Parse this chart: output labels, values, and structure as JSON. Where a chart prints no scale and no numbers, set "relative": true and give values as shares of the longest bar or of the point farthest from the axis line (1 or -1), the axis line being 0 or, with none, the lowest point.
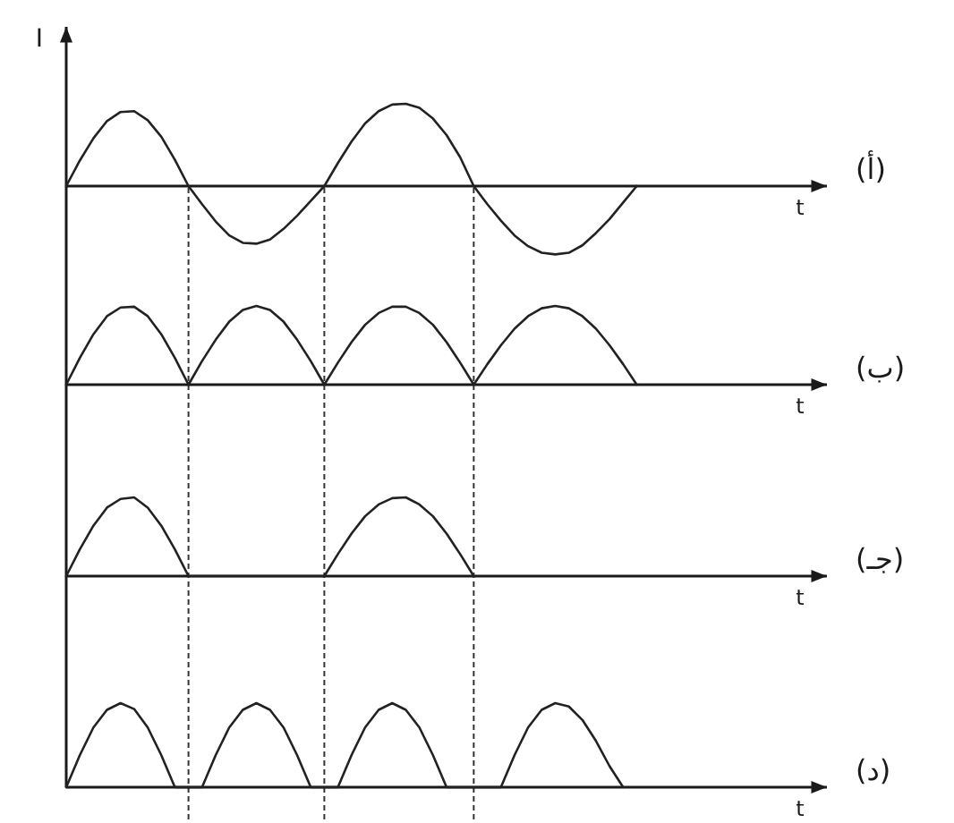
{
  "chart_data": [
    {
      "type": "line",
      "annotations": [
        "(أ)"
      ],
      "xlabel": "t",
      "ylabel": "I",
      "relative": true,
      "color": "#222222",
      "grid": "x",
      "categories": [
        null,
        null,
        null,
        null,
        null,
        null,
        null,
        null,
        null,
        null,
        null,
        null,
        null,
        null,
        null,
        null,
        null,
        null,
        null,
        null,
        null,
        null,
        null,
        null,
        null,
        null,
        null,
        null,
        null,
        null,
        null,
        null,
        null,
        null,
        null,
        null,
        null,
        null,
        null,
        null,
        null,
        null,
        null,
        null,
        null,
        null,
        null,
        null,
        null,
        null,
        null,
        null,
        null,
        null,
        null,
        null,
        null
      ],
      "values": [
        0,
        0.31,
        0.58,
        0.79,
        0.9,
        0.91,
        0.8,
        0.6,
        0.32,
        0,
        -0.22,
        -0.43,
        -0.6,
        -0.69,
        -0.7,
        -0.65,
        -0.52,
        -0.36,
        -0.18,
        0,
        0.28,
        0.54,
        0.76,
        0.91,
        0.99,
        1.0,
        0.95,
        0.82,
        0.62,
        0.35,
        0,
        -0.22,
        -0.42,
        -0.6,
        -0.73,
        -0.81,
        -0.83,
        -0.81,
        -0.72,
        -0.57,
        -0.4,
        -0.2,
        0,
        null,
        null,
        null,
        null,
        null,
        null,
        null,
        null,
        null,
        null,
        null,
        null,
        null,
        null
      ]
    },
    {
      "type": "line",
      "annotations": [
        "(ب)"
      ],
      "xlabel": "t",
      "relative": true,
      "color": "#222222",
      "categories": [
        null,
        null,
        null,
        null,
        null,
        null,
        null,
        null,
        null,
        null,
        null,
        null,
        null,
        null,
        null,
        null,
        null,
        null,
        null,
        null,
        null,
        null,
        null,
        null,
        null,
        null,
        null,
        null,
        null,
        null,
        null,
        null,
        null,
        null,
        null,
        null,
        null,
        null,
        null,
        null,
        null,
        null,
        null,
        null,
        null,
        null,
        null,
        null,
        null,
        null,
        null,
        null,
        null,
        null,
        null,
        null,
        null
      ],
      "values": [
        0,
        0.34,
        0.64,
        0.87,
        0.98,
        0.99,
        0.87,
        0.64,
        0.34,
        0,
        0.3,
        0.57,
        0.8,
        0.95,
        1.0,
        0.95,
        0.8,
        0.57,
        0.3,
        0,
        0.28,
        0.54,
        0.76,
        0.91,
        0.99,
        0.99,
        0.91,
        0.76,
        0.54,
        0.28,
        0,
        0.26,
        0.5,
        0.71,
        0.87,
        0.97,
        1.0,
        0.97,
        0.87,
        0.71,
        0.5,
        0.26,
        0,
        null,
        null,
        null,
        null,
        null,
        null,
        null,
        null,
        null,
        null,
        null,
        null,
        null,
        null
      ]
    },
    {
      "type": "line",
      "annotations": [
        "(جـ)"
      ],
      "xlabel": "t",
      "relative": true,
      "color": "#222222",
      "categories": [
        null,
        null,
        null,
        null,
        null,
        null,
        null,
        null,
        null,
        null,
        null,
        null,
        null,
        null,
        null,
        null,
        null,
        null,
        null,
        null,
        null,
        null,
        null,
        null,
        null,
        null,
        null,
        null,
        null,
        null,
        null,
        null,
        null,
        null,
        null,
        null,
        null,
        null,
        null,
        null,
        null,
        null,
        null,
        null,
        null,
        null,
        null,
        null,
        null,
        null,
        null,
        null,
        null,
        null,
        null,
        null,
        null
      ],
      "values": [
        0,
        0.34,
        0.64,
        0.87,
        0.98,
        1.0,
        0.87,
        0.64,
        0.34,
        0,
        0,
        0,
        0,
        0,
        0,
        0,
        0,
        0,
        0,
        0,
        0.28,
        0.54,
        0.76,
        0.91,
        0.99,
        1.0,
        0.91,
        0.76,
        0.54,
        0.28,
        0,
        null,
        null,
        null,
        null,
        null,
        null,
        null,
        null,
        null,
        null,
        null,
        null,
        null,
        null,
        null,
        null,
        null,
        null,
        null,
        null,
        null,
        null,
        null,
        null,
        null,
        null
      ]
    },
    {
      "type": "line",
      "annotations": [
        "(د)"
      ],
      "xlabel": "t",
      "relative": true,
      "color": "#222222",
      "categories": [
        null,
        null,
        null,
        null,
        null,
        null,
        null,
        null,
        null,
        null,
        null,
        null,
        null,
        null,
        null,
        null,
        null,
        null,
        null,
        null,
        null,
        null,
        null,
        null,
        null,
        null,
        null,
        null,
        null,
        null,
        null,
        null,
        null,
        null,
        null,
        null,
        null,
        null,
        null,
        null,
        null,
        null,
        null,
        null,
        null,
        null,
        null,
        null,
        null,
        null,
        null,
        null,
        null,
        null,
        null,
        null,
        null
      ],
      "values": [
        0,
        0.38,
        0.71,
        0.92,
        1.0,
        0.93,
        0.71,
        0.38,
        0,
        0,
        0,
        0.38,
        0.71,
        0.92,
        1.0,
        0.92,
        0.71,
        0.38,
        0,
        0,
        0,
        0.38,
        0.71,
        0.92,
        1.0,
        0.92,
        0.71,
        0.38,
        0,
        0,
        0,
        0,
        0,
        0.38,
        0.71,
        0.92,
        1.0,
        0.96,
        0.8,
        0.55,
        0.25,
        0,
        null,
        null,
        null,
        null,
        null,
        null,
        null,
        null,
        null,
        null,
        null,
        null,
        null,
        null,
        null
      ]
    }
  ]
}
